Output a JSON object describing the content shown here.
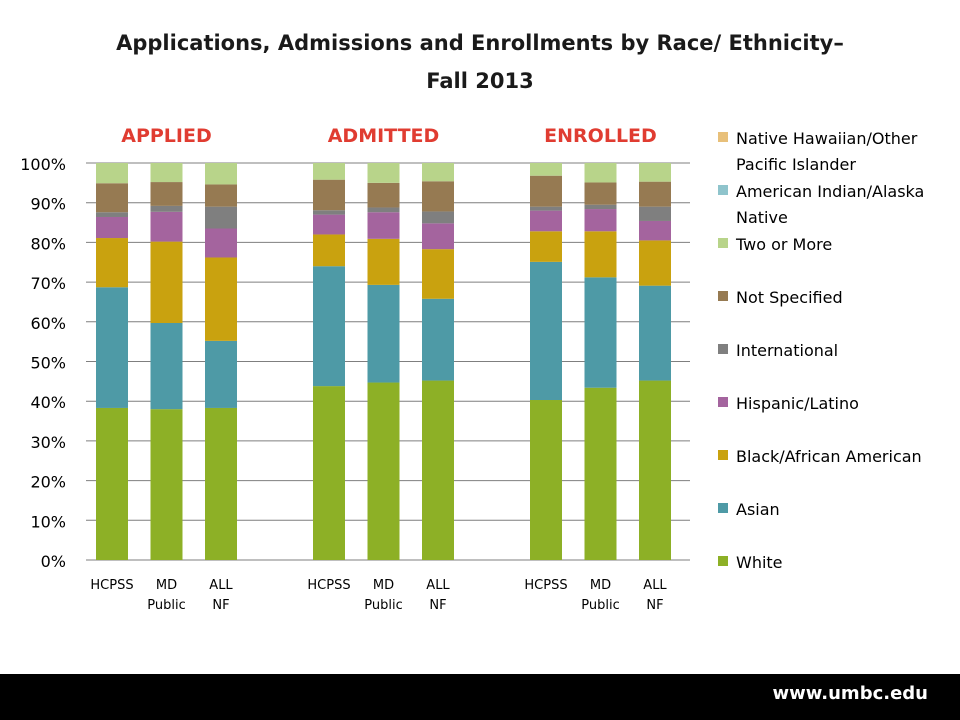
{
  "title_line1": "Applications, Admissions and Enrollments by Race/ Ethnicity–",
  "title_line2": "Fall 2013",
  "footer_url": "www.umbc.edu",
  "colors": {
    "group_label": "#e03c31",
    "grid": "#7f7f7f",
    "text": "#000000"
  },
  "chart_data": {
    "type": "bar",
    "stacked": true,
    "ylim": [
      0,
      100
    ],
    "yticks": [
      "0%",
      "10%",
      "20%",
      "30%",
      "40%",
      "50%",
      "60%",
      "70%",
      "80%",
      "90%",
      "100%"
    ],
    "grid": true,
    "legend_position": "right",
    "groups": [
      {
        "label": "APPLIED",
        "categories": [
          "HCPSS",
          "MD Public",
          "ALL NF"
        ]
      },
      {
        "label": "ADMITTED",
        "categories": [
          "HCPSS",
          "MD Public",
          "ALL NF"
        ]
      },
      {
        "label": "ENROLLED",
        "categories": [
          "HCPSS",
          "MD Public",
          "ALL NF"
        ]
      }
    ],
    "series": [
      {
        "name": "White",
        "color": "#8db026",
        "values": [
          38.3,
          38.0,
          38.3,
          43.8,
          44.7,
          45.2,
          40.3,
          43.4,
          45.2
        ]
      },
      {
        "name": "Asian",
        "color": "#4e9aa6",
        "values": [
          30.4,
          21.7,
          16.9,
          30.2,
          24.6,
          20.6,
          34.8,
          27.8,
          23.9
        ]
      },
      {
        "name": "Black/African American",
        "color": "#c9a20f",
        "values": [
          12.4,
          20.5,
          21.0,
          8.0,
          11.6,
          12.5,
          7.7,
          11.6,
          11.4
        ]
      },
      {
        "name": "Hispanic/Latino",
        "color": "#a4649e",
        "values": [
          5.3,
          7.5,
          7.3,
          5.0,
          6.7,
          6.5,
          5.2,
          5.6,
          4.9
        ]
      },
      {
        "name": "International",
        "color": "#7f7f7f",
        "values": [
          1.2,
          1.5,
          5.5,
          1.1,
          1.2,
          3.0,
          1.0,
          1.1,
          3.6
        ]
      },
      {
        "name": "Not Specified",
        "color": "#967a52",
        "values": [
          7.3,
          6.0,
          5.6,
          7.7,
          6.2,
          7.6,
          7.8,
          5.6,
          6.3
        ]
      },
      {
        "name": "Two or More",
        "color": "#b8d48a",
        "values": [
          5.1,
          4.8,
          5.4,
          4.2,
          5.0,
          4.6,
          3.2,
          4.9,
          4.7
        ]
      },
      {
        "name": "American Indian/Alaska Native",
        "color": "#8fc4cc",
        "values": [
          0,
          0,
          0,
          0,
          0,
          0,
          0,
          0,
          0
        ]
      },
      {
        "name": "Native Hawaiian/Other Pacific Islander",
        "color": "#e8c07a",
        "values": [
          0,
          0,
          0,
          0,
          0,
          0,
          0,
          0,
          0
        ]
      }
    ]
  }
}
